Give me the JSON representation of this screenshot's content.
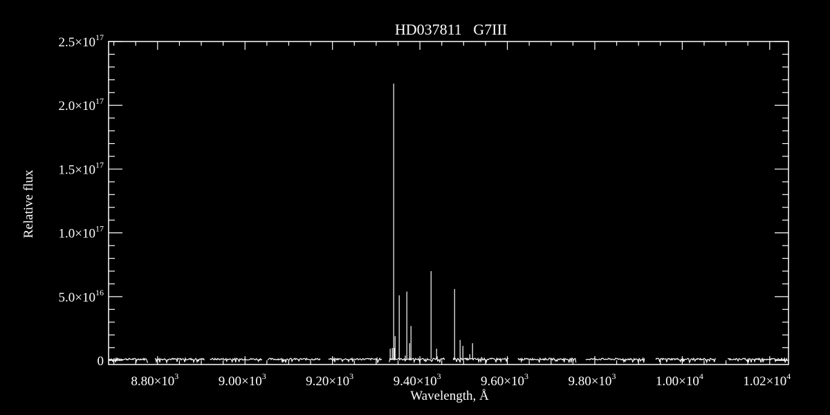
{
  "chart_data": {
    "type": "line",
    "title": "HD037811   G7III",
    "xlabel": "Wavelength, Å",
    "ylabel": "Relative flux",
    "xlim": [
      8688,
      10243
    ],
    "ylim": [
      -3200000000000000.0,
      2.5e+17
    ],
    "grid": false,
    "colors": {
      "background": "#000000",
      "foreground": "#ffffff"
    },
    "x_ticks": [
      {
        "value": 8800,
        "mantissa": "8.80",
        "exp": "3"
      },
      {
        "value": 9000,
        "mantissa": "9.00",
        "exp": "3"
      },
      {
        "value": 9200,
        "mantissa": "9.20",
        "exp": "3"
      },
      {
        "value": 9400,
        "mantissa": "9.40",
        "exp": "3"
      },
      {
        "value": 9600,
        "mantissa": "9.60",
        "exp": "3"
      },
      {
        "value": 9800,
        "mantissa": "9.80",
        "exp": "3"
      },
      {
        "value": 10000,
        "mantissa": "1.00",
        "exp": "4"
      },
      {
        "value": 10200,
        "mantissa": "1.02",
        "exp": "4"
      }
    ],
    "y_ticks": [
      {
        "value": 0,
        "mantissa": "0",
        "exp": ""
      },
      {
        "value": 5e+16,
        "mantissa": "5.0",
        "exp": "16"
      },
      {
        "value": 1e+17,
        "mantissa": "1.0",
        "exp": "17"
      },
      {
        "value": 1.5e+17,
        "mantissa": "1.5",
        "exp": "17"
      },
      {
        "value": 2e+17,
        "mantissa": "2.0",
        "exp": "17"
      },
      {
        "value": 2.5e+17,
        "mantissa": "2.5",
        "exp": "17"
      }
    ],
    "continuum_level": 1000000000000000.0,
    "continuum_segments": [
      [
        8688,
        8779
      ],
      [
        8794,
        8908
      ],
      [
        8920,
        9039
      ],
      [
        9052,
        9173
      ],
      [
        9191,
        9313
      ],
      [
        9330,
        9457
      ],
      [
        9476,
        9604
      ],
      [
        9624,
        9757
      ],
      [
        9779,
        9914
      ],
      [
        9939,
        10077
      ],
      [
        10104,
        10241
      ]
    ],
    "spikes": [
      {
        "x": 9332.1,
        "y": 9200000000000000.0
      },
      {
        "x": 9336.9,
        "y": 9700000000000000.0
      },
      {
        "x": 9340.0,
        "y": 2.17e+17
      },
      {
        "x": 9341.6,
        "y": 9700000000000000.0
      },
      {
        "x": 9343.2,
        "y": 1.9e+16
      },
      {
        "x": 9352.7,
        "y": 5.1e+16
      },
      {
        "x": 9357.1,
        "y": 1600000000000000.0
      },
      {
        "x": 9363.5,
        "y": 1600000000000000.0
      },
      {
        "x": 9366.6,
        "y": 3800000000000000.0
      },
      {
        "x": 9370.1,
        "y": 5.4e+16
      },
      {
        "x": 9376.4,
        "y": 1.35e+16
      },
      {
        "x": 9379.6,
        "y": 2.7e+16
      },
      {
        "x": 9397.0,
        "y": 1000000000000000.0
      },
      {
        "x": 9425.5,
        "y": 7e+16
      },
      {
        "x": 9438.1,
        "y": 9200000000000000.0
      },
      {
        "x": 9439.7,
        "y": 3200000000000000.0
      },
      {
        "x": 9454.0,
        "y": 2200000000000000.0
      },
      {
        "x": 9477.7,
        "y": 2200000000000000.0
      },
      {
        "x": 9479.3,
        "y": 5.6e+16
      },
      {
        "x": 9491.9,
        "y": 1.6e+16
      },
      {
        "x": 9498.3,
        "y": 1.14e+16
      },
      {
        "x": 9514.1,
        "y": 4900000000000000.0
      },
      {
        "x": 9520.4,
        "y": 1.35e+16
      },
      {
        "x": 9541.0,
        "y": 2700000000000000.0
      }
    ]
  }
}
